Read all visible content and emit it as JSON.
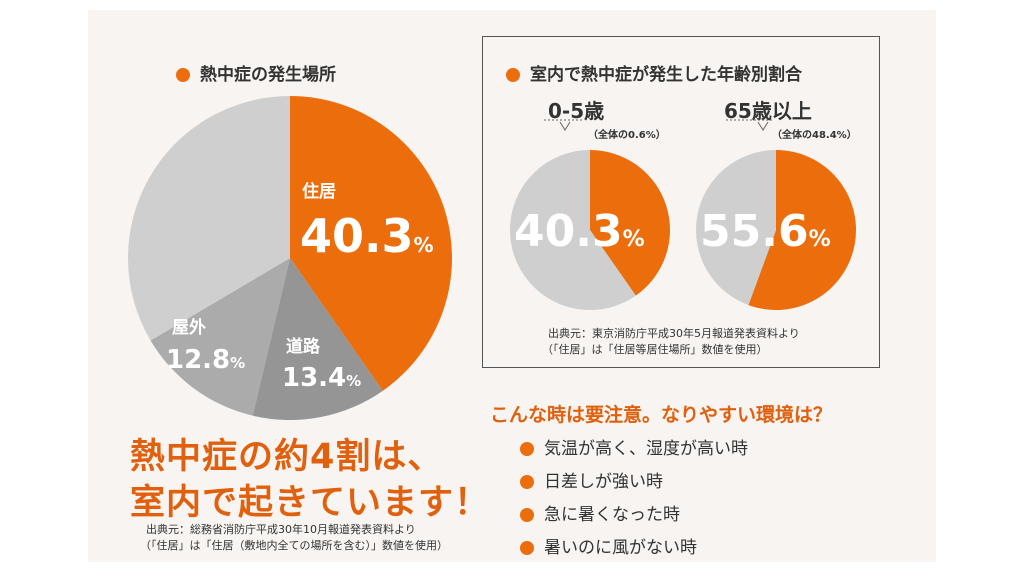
{
  "colors": {
    "orange": "#ec6d0c",
    "gray_light": "#cfcfcf",
    "gray_mid": "#ababab",
    "gray_dark": "#959595",
    "text": "#333333",
    "bg": "#f7f4f1"
  },
  "left": {
    "title": "熱中症の発生場所",
    "caption_line1": "熱中症の約4割は、",
    "caption_line2": "室内で起きています！",
    "source_line1": "出典元：総務省消防庁平成30年10月報道発表資料より",
    "source_line2": "（「住居」は「住居（敷地内全ての場所を含む）」数値を使用）"
  },
  "right": {
    "title": "室内で熱中症が発生した年齢別割合",
    "source_line1": "出典元：東京消防庁平成30年5月報道発表資料より",
    "source_line2": "（「住居」は「住居等居住場所」数値を使用）",
    "tips_heading": "こんな時は要注意。なりやすい環境は？",
    "tips": [
      "気温が高く、湿度が高い時",
      "日差しが強い時",
      "急に暑くなった時",
      "暑いのに風がない時"
    ]
  },
  "chart_data": [
    {
      "type": "pie",
      "title": "熱中症の発生場所",
      "slices": [
        {
          "label": "住居",
          "value": 40.3,
          "display": "40.3",
          "unit": "%",
          "color": "#ec6d0c"
        },
        {
          "label": "道路",
          "value": 13.4,
          "display": "13.4",
          "unit": "%",
          "color": "#959595"
        },
        {
          "label": "屋外",
          "value": 12.8,
          "display": "12.8",
          "unit": "%",
          "color": "#ababab"
        },
        {
          "label": "",
          "value": 33.5,
          "display": "",
          "unit": "",
          "color": "#cfcfcf"
        }
      ]
    },
    {
      "type": "pie",
      "label": "0-5歳",
      "sublabel": "（全体の0.6%）",
      "value": 40.3,
      "display": "40.3",
      "unit": "%",
      "colors": [
        "#ec6d0c",
        "#cfcfcf"
      ]
    },
    {
      "type": "pie",
      "label": "65歳以上",
      "sublabel": "（全体の48.4%）",
      "value": 55.6,
      "display": "55.6",
      "unit": "%",
      "colors": [
        "#ec6d0c",
        "#cfcfcf"
      ]
    }
  ]
}
